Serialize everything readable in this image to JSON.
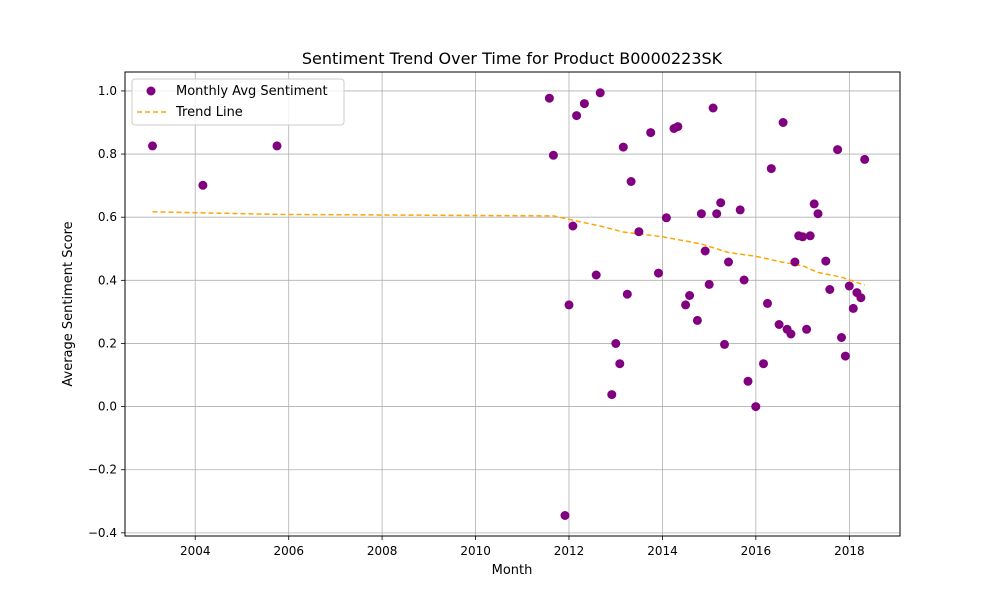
{
  "chart_data": {
    "type": "scatter",
    "title": "Sentiment Trend Over Time for Product B0000223SK",
    "xlabel": "Month",
    "ylabel": "Average Sentiment Score",
    "xlim": [
      "2002-07-01",
      "2019-02-01"
    ],
    "ylim": [
      -0.41,
      1.06
    ],
    "x_ticks": [
      "2004",
      "2006",
      "2008",
      "2010",
      "2012",
      "2014",
      "2016",
      "2018"
    ],
    "y_ticks": [
      "−0.4",
      "−0.2",
      "0.0",
      "0.2",
      "0.4",
      "0.6",
      "0.8",
      "1.0"
    ],
    "grid": true,
    "legend_position": "top-left",
    "series": [
      {
        "name": "Monthly Avg Sentiment",
        "kind": "scatter",
        "color": "#800080",
        "points": [
          [
            "2003-02-01",
            0.826
          ],
          [
            "2004-03-01",
            0.701
          ],
          [
            "2005-10-01",
            0.826
          ],
          [
            "2011-08-01",
            0.977
          ],
          [
            "2011-09-01",
            0.796
          ],
          [
            "2011-12-01",
            -0.345
          ],
          [
            "2012-01-01",
            0.322
          ],
          [
            "2012-02-01",
            0.572
          ],
          [
            "2012-03-01",
            0.922
          ],
          [
            "2012-05-01",
            0.96
          ],
          [
            "2012-08-01",
            0.417
          ],
          [
            "2012-09-01",
            0.994
          ],
          [
            "2012-12-01",
            0.038
          ],
          [
            "2013-01-01",
            0.2
          ],
          [
            "2013-02-01",
            0.136
          ],
          [
            "2013-03-01",
            0.822
          ],
          [
            "2013-04-01",
            0.356
          ],
          [
            "2013-05-01",
            0.713
          ],
          [
            "2013-07-01",
            0.554
          ],
          [
            "2013-10-01",
            0.868
          ],
          [
            "2013-12-01",
            0.423
          ],
          [
            "2014-02-01",
            0.598
          ],
          [
            "2014-04-01",
            0.881
          ],
          [
            "2014-05-01",
            0.887
          ],
          [
            "2014-07-01",
            0.322
          ],
          [
            "2014-08-01",
            0.352
          ],
          [
            "2014-10-01",
            0.273
          ],
          [
            "2014-11-01",
            0.611
          ],
          [
            "2014-12-01",
            0.493
          ],
          [
            "2015-01-01",
            0.387
          ],
          [
            "2015-02-01",
            0.946
          ],
          [
            "2015-03-01",
            0.611
          ],
          [
            "2015-04-01",
            0.646
          ],
          [
            "2015-05-01",
            0.197
          ],
          [
            "2015-06-01",
            0.458
          ],
          [
            "2015-09-01",
            0.623
          ],
          [
            "2015-10-01",
            0.401
          ],
          [
            "2015-11-01",
            0.08
          ],
          [
            "2016-01-01",
            0.0
          ],
          [
            "2016-03-01",
            0.136
          ],
          [
            "2016-04-01",
            0.327
          ],
          [
            "2016-05-01",
            0.754
          ],
          [
            "2016-07-01",
            0.26
          ],
          [
            "2016-08-01",
            0.9
          ],
          [
            "2016-09-01",
            0.245
          ],
          [
            "2016-10-01",
            0.23
          ],
          [
            "2016-11-01",
            0.458
          ],
          [
            "2016-12-01",
            0.541
          ],
          [
            "2017-01-01",
            0.538
          ],
          [
            "2017-02-01",
            0.245
          ],
          [
            "2017-03-01",
            0.541
          ],
          [
            "2017-04-01",
            0.642
          ],
          [
            "2017-05-01",
            0.611
          ],
          [
            "2017-07-01",
            0.461
          ],
          [
            "2017-08-01",
            0.371
          ],
          [
            "2017-10-01",
            0.814
          ],
          [
            "2017-11-01",
            0.219
          ],
          [
            "2017-12-01",
            0.16
          ],
          [
            "2018-01-01",
            0.382
          ],
          [
            "2018-02-01",
            0.311
          ],
          [
            "2018-03-01",
            0.361
          ],
          [
            "2018-04-01",
            0.345
          ],
          [
            "2018-05-01",
            0.783
          ]
        ]
      },
      {
        "name": "Trend Line",
        "kind": "line",
        "style": "dashed",
        "color": "#FFA500",
        "points": [
          [
            "2003-02-01",
            0.617
          ],
          [
            "2005-10-01",
            0.609
          ],
          [
            "2011-09-01",
            0.604
          ],
          [
            "2012-01-01",
            0.593
          ],
          [
            "2012-09-01",
            0.572
          ],
          [
            "2013-03-01",
            0.553
          ],
          [
            "2014-01-01",
            0.538
          ],
          [
            "2014-11-01",
            0.515
          ],
          [
            "2015-06-01",
            0.488
          ],
          [
            "2016-01-01",
            0.476
          ],
          [
            "2016-08-01",
            0.457
          ],
          [
            "2017-01-01",
            0.446
          ],
          [
            "2017-05-01",
            0.425
          ],
          [
            "2017-11-01",
            0.41
          ],
          [
            "2018-05-01",
            0.385
          ]
        ]
      }
    ]
  }
}
